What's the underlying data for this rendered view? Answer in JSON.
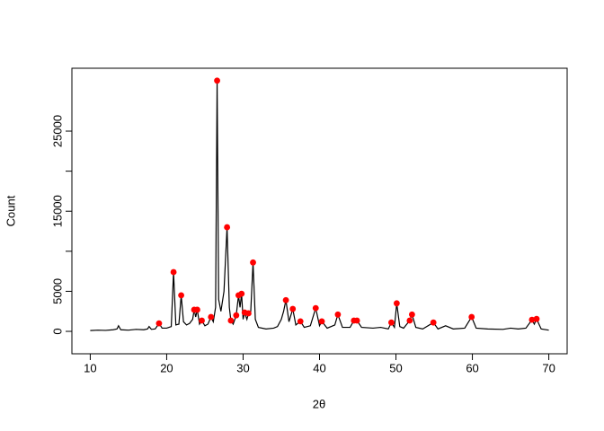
{
  "chart_data": {
    "type": "line",
    "x_label": "2θ",
    "y_label": "Count",
    "color": "#000000",
    "x": [
      10,
      11,
      12,
      13,
      13.5,
      13.7,
      14,
      15,
      16,
      17,
      17.5,
      17.7,
      18,
      18.5,
      19,
      19.4,
      20,
      20.6,
      20.9,
      21.2,
      21.6,
      21.9,
      22.2,
      22.6,
      23,
      23.4,
      23.6,
      23.8,
      24,
      24.3,
      24.6,
      25,
      25.4,
      25.8,
      26.1,
      26.4,
      26.6,
      26.8,
      27.1,
      27.5,
      27.9,
      28.2,
      28.4,
      28.7,
      29.1,
      29.4,
      29.6,
      29.8,
      30,
      30.2,
      30.5,
      30.7,
      31,
      31.3,
      31.6,
      32,
      33,
      34,
      34.5,
      35,
      35.3,
      35.6,
      36,
      36.5,
      36.9,
      37.5,
      38,
      38.8,
      39.5,
      40,
      40.3,
      41,
      42,
      42.4,
      43,
      44,
      44.5,
      44.9,
      45.5,
      47,
      48,
      49,
      49.4,
      49.8,
      50.1,
      50.5,
      51,
      51.8,
      52.1,
      52.6,
      53.5,
      54.9,
      55.5,
      56.5,
      57.5,
      59,
      59.9,
      60.5,
      62,
      64,
      65,
      66,
      67,
      67.8,
      68.1,
      68.4,
      69,
      70
    ],
    "y": [
      100,
      150,
      120,
      200,
      300,
      700,
      200,
      150,
      250,
      200,
      300,
      600,
      250,
      300,
      1000,
      400,
      400,
      600,
      7400,
      800,
      900,
      4500,
      1200,
      800,
      1000,
      1500,
      2700,
      1800,
      2700,
      900,
      1350,
      700,
      900,
      1800,
      1200,
      3000,
      31300,
      4000,
      2500,
      5000,
      13000,
      3000,
      1350,
      900,
      2000,
      4500,
      3000,
      4700,
      1500,
      2350,
      1500,
      2250,
      2500,
      8600,
      1500,
      500,
      300,
      400,
      600,
      1500,
      2500,
      3900,
      1200,
      2800,
      800,
      1250,
      500,
      700,
      2900,
      700,
      1250,
      400,
      800,
      2100,
      500,
      500,
      1350,
      1350,
      500,
      400,
      500,
      300,
      1100,
      500,
      3500,
      600,
      400,
      1350,
      2100,
      500,
      300,
      1100,
      300,
      700,
      300,
      400,
      1800,
      400,
      300,
      250,
      400,
      300,
      400,
      1450,
      900,
      1550,
      300,
      150
    ],
    "peaks": {
      "color": "#ff0000",
      "x": [
        19.0,
        20.9,
        21.9,
        23.6,
        24.0,
        24.6,
        25.8,
        26.6,
        27.9,
        28.4,
        29.1,
        29.4,
        29.8,
        30.2,
        30.7,
        31.3,
        35.6,
        36.5,
        37.5,
        39.5,
        40.3,
        42.4,
        44.5,
        44.9,
        49.4,
        50.1,
        51.8,
        52.1,
        54.9,
        59.9,
        67.8,
        68.4
      ],
      "y": [
        1000,
        7400,
        4500,
        2700,
        2700,
        1350,
        1800,
        31300,
        13000,
        1350,
        2000,
        4500,
        4700,
        2350,
        2250,
        8600,
        3900,
        2800,
        1250,
        2900,
        1250,
        2100,
        1350,
        1350,
        1100,
        3500,
        1350,
        2100,
        1100,
        1800,
        1450,
        1550
      ]
    },
    "xlim": [
      7.6,
      72.4
    ],
    "ylim": [
      -2800,
      32850
    ],
    "xticks": [
      10,
      20,
      30,
      40,
      50,
      60,
      70
    ],
    "yticks": [
      0,
      5000,
      15000,
      25000
    ],
    "yminor_ticks": [
      10000,
      20000
    ]
  }
}
